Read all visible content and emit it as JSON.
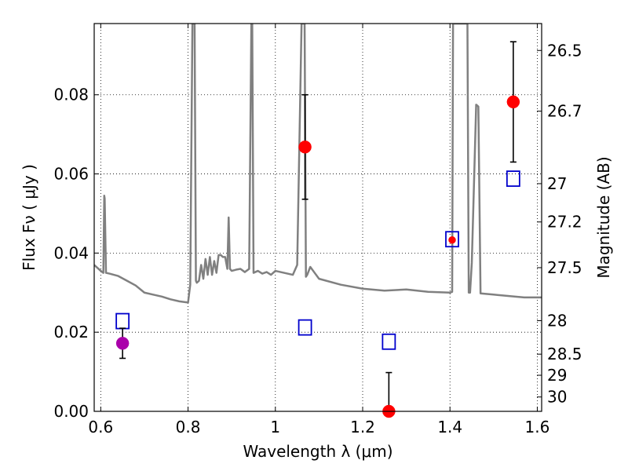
{
  "chart_data": {
    "type": "scatter",
    "xlabel": "Wavelength  λ (μm)",
    "ylabel": "Flux  Fν  ( μJy )",
    "y2label": "Magnitude (AB)",
    "xlim": [
      0.585,
      1.61
    ],
    "ylim": [
      0.0,
      0.098
    ],
    "x_ticks": [
      0.6,
      0.8,
      1.0,
      1.2,
      1.4,
      1.6
    ],
    "x_tick_labels": [
      "0.6",
      "0.8",
      "1",
      "1.2",
      "1.4",
      "1.6"
    ],
    "y_ticks": [
      0.0,
      0.02,
      0.04,
      0.06,
      0.08
    ],
    "y_tick_labels": [
      "0.00",
      "0.02",
      "0.04",
      "0.06",
      "0.08"
    ],
    "y2_tick_labels": [
      "26.5",
      "26.7",
      "27",
      "27.2",
      "27.5",
      "28",
      "28.5",
      "29",
      "30"
    ],
    "y2_tick_flux": [
      0.0912,
      0.07586,
      0.05754,
      0.04786,
      0.03631,
      0.02291,
      0.01445,
      0.00912,
      0.00363
    ],
    "grid": true,
    "colors": {
      "model": "#808080",
      "observed": "#ff0000",
      "observed_alt": "#aa00aa",
      "model_photometry": "#0000cc",
      "errorbar": "#000000"
    },
    "model_spectrum": {
      "x": [
        0.585,
        0.6,
        0.606,
        0.608,
        0.609,
        0.612,
        0.62,
        0.64,
        0.66,
        0.68,
        0.7,
        0.72,
        0.74,
        0.76,
        0.78,
        0.8,
        0.805,
        0.81,
        0.812,
        0.813,
        0.815,
        0.818,
        0.82,
        0.825,
        0.83,
        0.835,
        0.84,
        0.845,
        0.85,
        0.855,
        0.86,
        0.865,
        0.87,
        0.875,
        0.88,
        0.885,
        0.89,
        0.893,
        0.896,
        0.9,
        0.91,
        0.92,
        0.93,
        0.94,
        0.945,
        0.947,
        0.95,
        0.96,
        0.97,
        0.98,
        0.99,
        1.0,
        1.02,
        1.04,
        1.05,
        1.06,
        1.063,
        1.067,
        1.07,
        1.073,
        1.08,
        1.09,
        1.1,
        1.15,
        1.2,
        1.25,
        1.3,
        1.35,
        1.4,
        1.405,
        1.407,
        1.41,
        1.43,
        1.435,
        1.44,
        1.443,
        1.446,
        1.45,
        1.46,
        1.465,
        1.47,
        1.5,
        1.55,
        1.57,
        1.61
      ],
      "y": [
        0.037,
        0.0355,
        0.035,
        0.0545,
        0.0538,
        0.035,
        0.0348,
        0.0342,
        0.033,
        0.0318,
        0.03,
        0.0295,
        0.029,
        0.0283,
        0.0278,
        0.0275,
        0.032,
        0.098,
        0.098,
        0.098,
        0.098,
        0.033,
        0.0325,
        0.033,
        0.037,
        0.0335,
        0.0385,
        0.0345,
        0.039,
        0.0345,
        0.038,
        0.035,
        0.0395,
        0.0395,
        0.039,
        0.039,
        0.036,
        0.049,
        0.036,
        0.0355,
        0.0358,
        0.036,
        0.0352,
        0.036,
        0.098,
        0.098,
        0.035,
        0.0355,
        0.0348,
        0.0352,
        0.0345,
        0.0355,
        0.035,
        0.0345,
        0.037,
        0.098,
        0.098,
        0.098,
        0.034,
        0.0345,
        0.0365,
        0.035,
        0.0335,
        0.032,
        0.031,
        0.0305,
        0.0308,
        0.0302,
        0.03,
        0.0302,
        0.098,
        0.098,
        0.098,
        0.098,
        0.098,
        0.03,
        0.03,
        0.0375,
        0.0775,
        0.077,
        0.0298,
        0.0295,
        0.029,
        0.0288,
        0.0288
      ]
    },
    "observed": [
      {
        "x": 1.068,
        "y": 0.0668,
        "err": 0.0132,
        "color": "red"
      },
      {
        "x": 1.545,
        "y": 0.0782,
        "err": 0.0152,
        "color": "red"
      },
      {
        "x": 1.405,
        "y": 0.0433,
        "err": 0.0,
        "color": "red"
      },
      {
        "x": 1.26,
        "y": 0.0,
        "err": 0.0098,
        "color": "red"
      },
      {
        "x": 0.65,
        "y": 0.0172,
        "err": 0.0038,
        "color": "purple"
      }
    ],
    "model_photometry": [
      {
        "x": 0.65,
        "y": 0.0228
      },
      {
        "x": 1.068,
        "y": 0.0212
      },
      {
        "x": 1.26,
        "y": 0.0176
      },
      {
        "x": 1.405,
        "y": 0.0435
      },
      {
        "x": 1.545,
        "y": 0.0588
      }
    ]
  }
}
